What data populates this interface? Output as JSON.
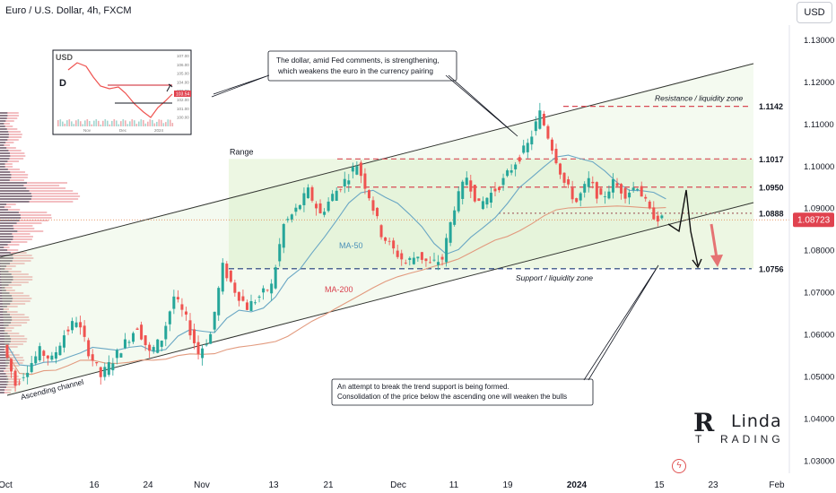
{
  "header": {
    "symbol_title": "Euro / U.S. Dollar, 4h, FXCM"
  },
  "currency_button": "USD",
  "logo": {
    "text_top": "RLinda",
    "text_bottom": "TRADING"
  },
  "colors": {
    "price_tag": "#e0424f",
    "resistance": "#d84a55",
    "support": "#1f3a7a",
    "ma50": "#6aa7c4",
    "ma200": "#e29a7e",
    "range_fill": "#e9f5dc",
    "bull": "#26a69a",
    "bear": "#ef5350"
  },
  "annotations": {
    "range": "Range",
    "resistance": "Resistance / liquidity zone",
    "support": "Support / liquidity zone",
    "channel": "Ascending channel",
    "ma50": "MA-50",
    "ma200": "MA-200",
    "callout_top_1": "The dollar, amid Fed comments, is strengthening,",
    "callout_top_2": "which weakens the euro in the currency pairing",
    "callout_bottom_1": "An attempt to break the trend support is being formed.",
    "callout_bottom_2": "Consolidation of the price below the ascending one will weaken the bulls"
  },
  "inset": {
    "title": "USD",
    "timeframe": "D",
    "x_ticks": [
      "Nov",
      "Dec",
      "2024"
    ],
    "y_ticks": [
      "107.00",
      "106.00",
      "105.00",
      "104.00",
      "103.00",
      "102.00",
      "101.00",
      "100.00"
    ],
    "price_tag": "103.54"
  },
  "chart_data": {
    "type": "candlestick",
    "x_ticks": [
      "Oct",
      "16",
      "24",
      "Nov",
      "13",
      "21",
      "Dec",
      "11",
      "19",
      "2024",
      "15",
      "23",
      "Feb"
    ],
    "y_ticks": [
      "1.13000",
      "1.12000",
      "1.11000",
      "1.10000",
      "1.09000",
      "1.08000",
      "1.07000",
      "1.06000",
      "1.05000",
      "1.04000",
      "1.03000"
    ],
    "y_range": [
      1.027,
      1.1335
    ],
    "current_price": "1.08723",
    "levels": [
      {
        "label": "1.1142",
        "value": 1.1142,
        "style": "dashed-red"
      },
      {
        "label": "1.1017",
        "value": 1.1017,
        "style": "dashed-red"
      },
      {
        "label": "1.0950",
        "value": 1.095,
        "style": "dashed-red"
      },
      {
        "label": "1.0888",
        "value": 1.0888,
        "style": "dashed-gray"
      },
      {
        "label": "1.0756",
        "value": 1.0756,
        "style": "dashed-navy"
      }
    ],
    "price_path": [
      [
        0,
        1.0575
      ],
      [
        1,
        1.048
      ],
      [
        2,
        1.052
      ],
      [
        3,
        1.056
      ],
      [
        4,
        1.054
      ],
      [
        5,
        1.06
      ],
      [
        6,
        1.0635
      ],
      [
        7,
        1.056
      ],
      [
        8,
        1.05
      ],
      [
        9,
        1.054
      ],
      [
        10,
        1.058
      ],
      [
        11,
        1.062
      ],
      [
        12,
        1.0555
      ],
      [
        13,
        1.059
      ],
      [
        14,
        1.069
      ],
      [
        15,
        1.0635
      ],
      [
        16,
        1.0555
      ],
      [
        17,
        1.06
      ],
      [
        18,
        1.076
      ],
      [
        19,
        1.0705
      ],
      [
        20,
        1.0665
      ],
      [
        21,
        1.069
      ],
      [
        22,
        1.0715
      ],
      [
        23,
        1.086
      ],
      [
        24,
        1.0895
      ],
      [
        25,
        1.094
      ],
      [
        26,
        1.0885
      ],
      [
        27,
        1.093
      ],
      [
        28,
        1.0965
      ],
      [
        29,
        1.1005
      ],
      [
        30,
        1.093
      ],
      [
        31,
        1.084
      ],
      [
        32,
        1.08
      ],
      [
        33,
        1.077
      ],
      [
        34,
        1.079
      ],
      [
        35,
        1.0765
      ],
      [
        36,
        1.078
      ],
      [
        37,
        1.0905
      ],
      [
        38,
        1.0975
      ],
      [
        39,
        1.0905
      ],
      [
        40,
        1.0935
      ],
      [
        41,
        1.0965
      ],
      [
        42,
        1.101
      ],
      [
        43,
        1.105
      ],
      [
        44,
        1.1125
      ],
      [
        45,
        1.1045
      ],
      [
        46,
        1.096
      ],
      [
        47,
        1.0915
      ],
      [
        48,
        1.0965
      ],
      [
        49,
        1.092
      ],
      [
        50,
        1.096
      ],
      [
        51,
        1.0935
      ],
      [
        52,
        1.0955
      ],
      [
        53,
        1.089
      ],
      [
        54,
        1.0872
      ]
    ]
  }
}
